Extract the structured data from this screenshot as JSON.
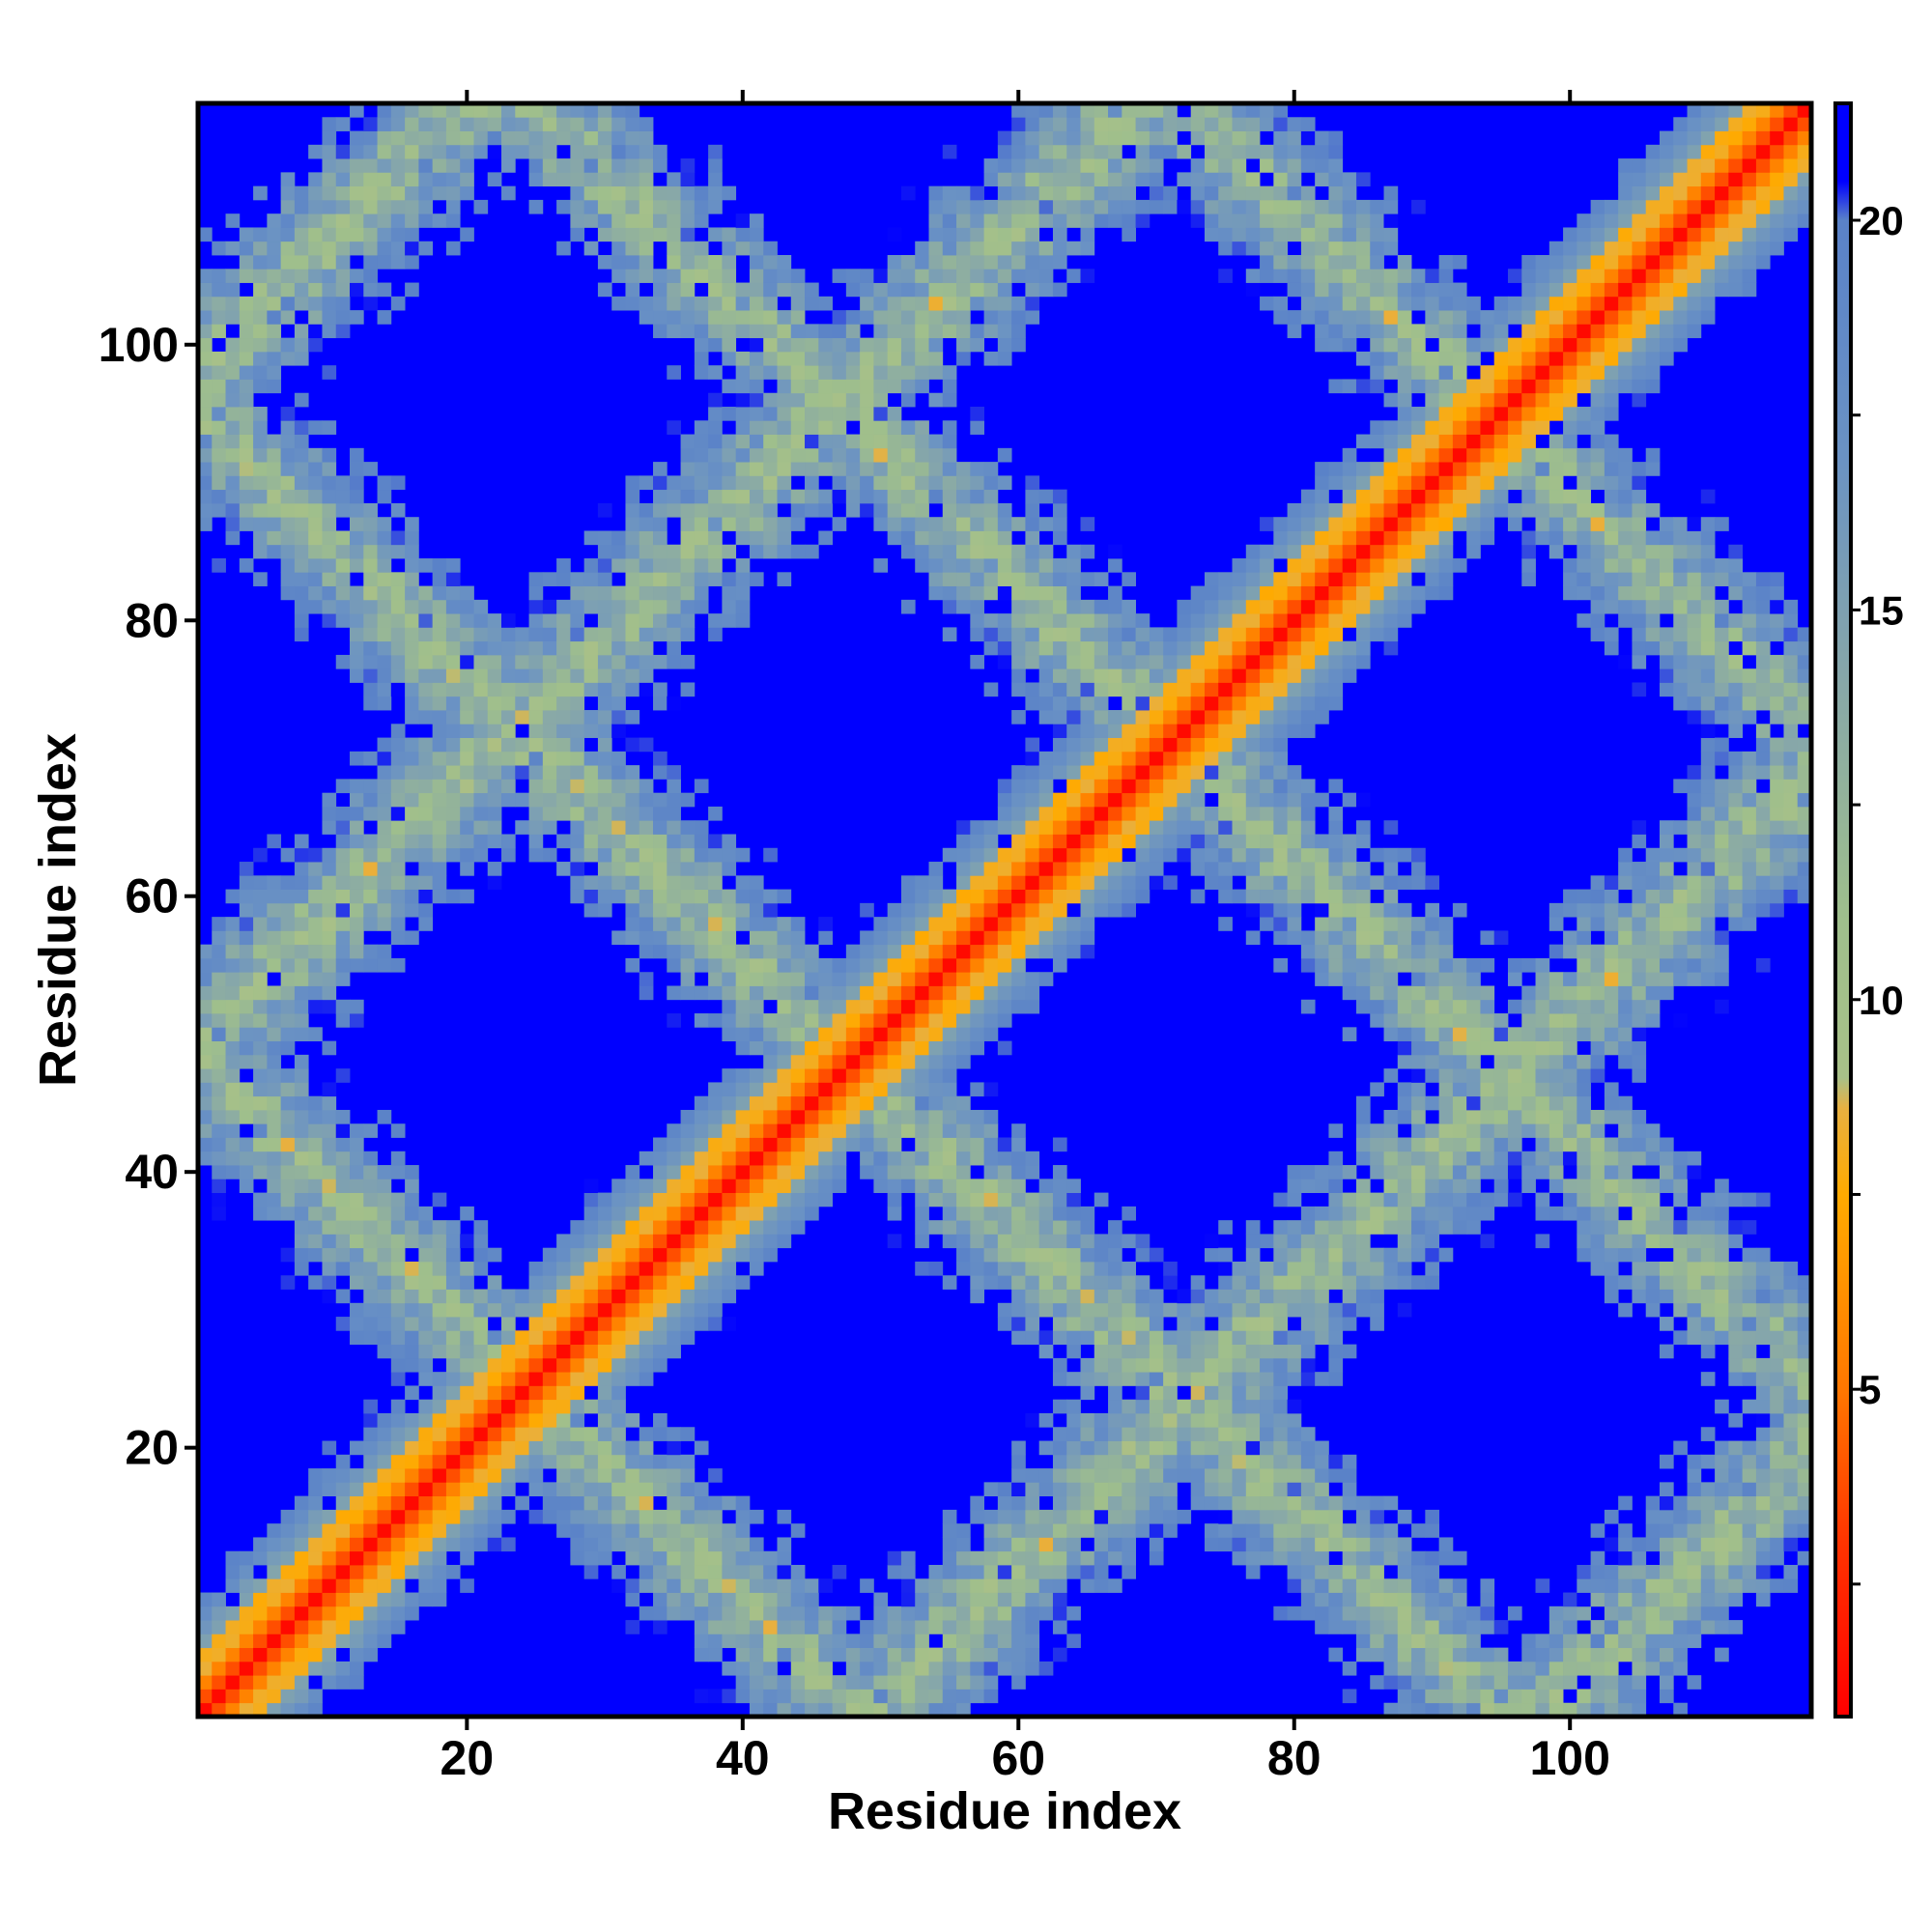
{
  "chart_data": {
    "type": "heatmap",
    "title": "",
    "xlabel": "Residue index",
    "ylabel": "Residue index",
    "n_residues": 117,
    "xlim": [
      1,
      117
    ],
    "ylim": [
      1,
      117
    ],
    "x_ticks": [
      20,
      40,
      60,
      80,
      100
    ],
    "x_tick_labels": [
      "20",
      "40",
      "60",
      "80",
      "100"
    ],
    "y_ticks": [
      20,
      40,
      60,
      80,
      100
    ],
    "y_tick_labels": [
      "20",
      "40",
      "60",
      "80",
      "100"
    ],
    "colorbar": {
      "range": [
        0.8,
        21.5
      ],
      "ticks": [
        5,
        10,
        15,
        20
      ],
      "tick_labels": [
        "5",
        "10",
        "15",
        "20"
      ],
      "stops": [
        {
          "value": 0.8,
          "color": "#ff0000"
        },
        {
          "value": 3.0,
          "color": "#ff3300"
        },
        {
          "value": 5.0,
          "color": "#ff7700"
        },
        {
          "value": 7.5,
          "color": "#ffaa00"
        },
        {
          "value": 8.6,
          "color": "#e8b040"
        },
        {
          "value": 9.0,
          "color": "#a8c088"
        },
        {
          "value": 11.0,
          "color": "#9fbf8c"
        },
        {
          "value": 14.0,
          "color": "#88a8a8"
        },
        {
          "value": 17.0,
          "color": "#6a92c4"
        },
        {
          "value": 20.0,
          "color": "#5a82c8"
        },
        {
          "value": 20.5,
          "color": "#0000ff"
        },
        {
          "value": 21.5,
          "color": "#0000ff"
        }
      ]
    },
    "cutoff": 20.5,
    "grid": false,
    "legend": "colorbar-right"
  }
}
